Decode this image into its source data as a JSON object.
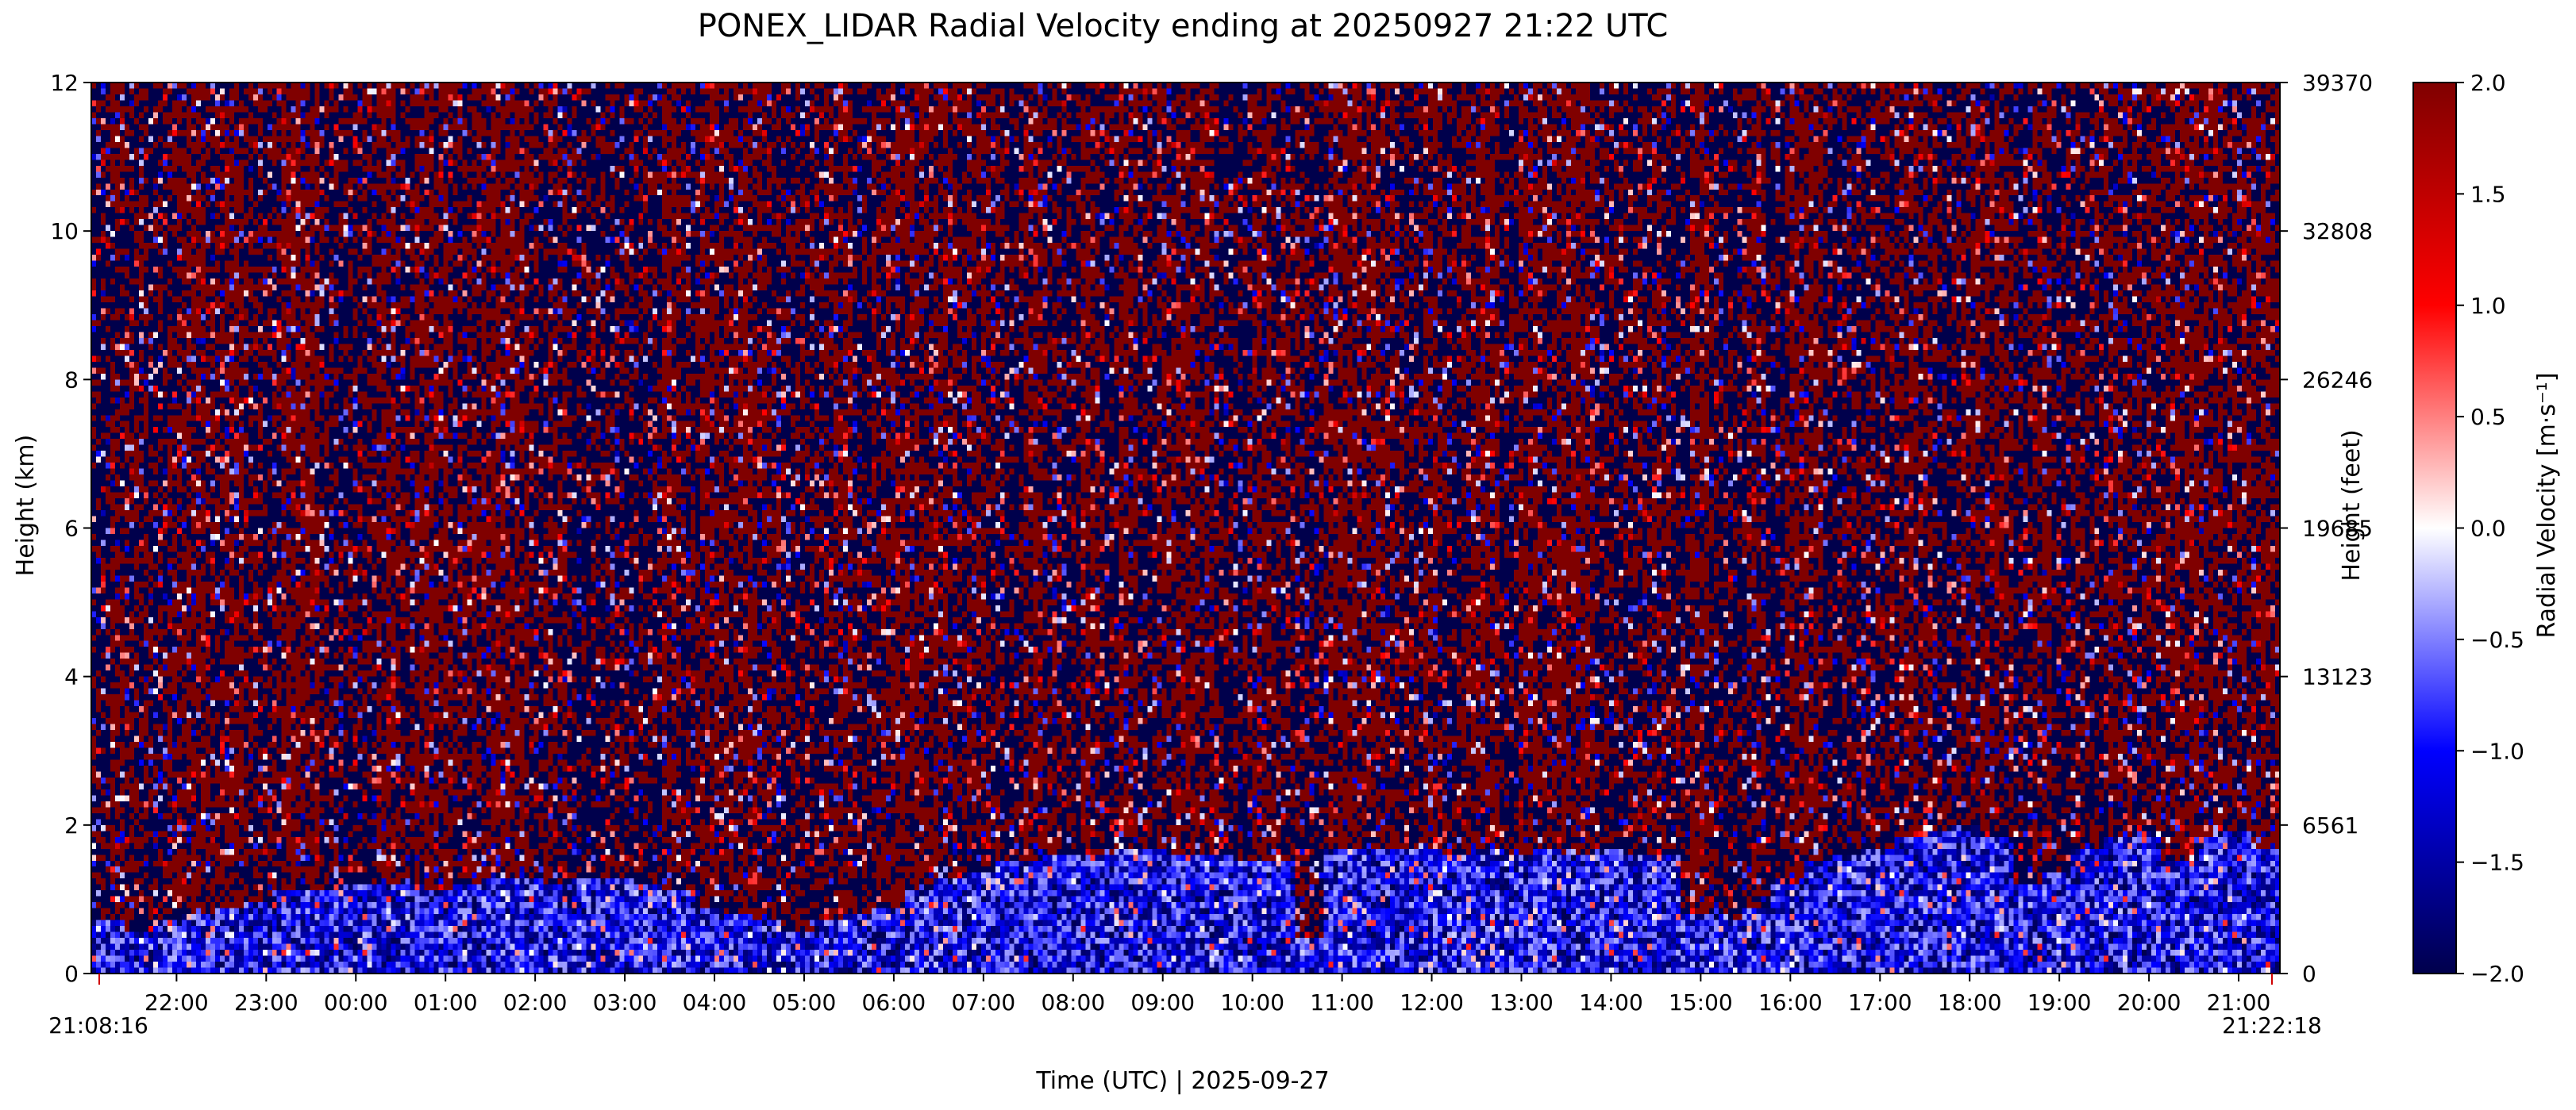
{
  "chart_data": {
    "type": "heatmap",
    "title": "PONEX_LIDAR Radial Velocity ending at 20250927 21:22 UTC",
    "xlabel": "Time (UTC)  |  2025-09-27",
    "ylabel_left": "Height (km)",
    "ylabel_right": "Height (feet)",
    "colorbar_label": "Radial Velocity [m·s⁻¹]",
    "colormap": "seismic",
    "color_stops": [
      "#00004c",
      "#0000ff",
      "#ffffff",
      "#ff0000",
      "#800000"
    ],
    "ylim_km": [
      0,
      12
    ],
    "color_range": [
      -2.0,
      2.0
    ],
    "x_start_label": "21:08:16",
    "x_end_label": "21:22:18",
    "x_ticks": [
      "22:00",
      "23:00",
      "00:00",
      "01:00",
      "02:00",
      "03:00",
      "04:00",
      "05:00",
      "06:00",
      "07:00",
      "08:00",
      "09:00",
      "10:00",
      "11:00",
      "12:00",
      "13:00",
      "14:00",
      "15:00",
      "16:00",
      "17:00",
      "18:00",
      "19:00",
      "20:00",
      "21:00"
    ],
    "y_ticks_km": [
      "0",
      "2",
      "4",
      "6",
      "8",
      "10",
      "12"
    ],
    "y_ticks_feet": [
      "0",
      "6561",
      "13123",
      "19685",
      "26246",
      "32808",
      "39370"
    ],
    "colorbar_ticks": [
      "2.0",
      "1.5",
      "1.0",
      "0.5",
      "0.0",
      "−0.5",
      "−1.0",
      "−1.5",
      "−2.0"
    ],
    "boundary_layer_top_km": [
      0.7,
      0.6,
      0.7,
      0.8,
      0.9,
      1.0,
      1.1,
      1.1,
      1.2,
      1.2,
      1.2,
      1.1,
      1.2,
      1.3,
      1.3,
      1.2,
      1.3,
      1.3,
      1.2,
      1.1,
      0.9,
      0.8,
      0.7,
      0.6,
      0.7,
      0.8,
      0.9,
      1.1,
      1.3,
      1.4,
      1.5,
      1.5,
      1.6,
      1.6,
      1.7,
      1.7,
      1.6,
      1.6,
      1.5,
      1.5,
      0.5,
      1.7,
      1.7,
      1.7,
      1.7,
      1.6,
      1.7,
      1.6,
      1.7,
      1.6,
      1.7,
      1.6,
      1.6,
      0.8,
      0.7,
      0.9,
      1.2,
      1.5,
      1.6,
      1.7,
      1.8,
      1.9,
      2.0,
      1.8,
      1.2,
      1.4,
      1.7,
      1.8,
      1.9,
      1.5,
      1.8,
      1.9,
      1.7
    ]
  }
}
